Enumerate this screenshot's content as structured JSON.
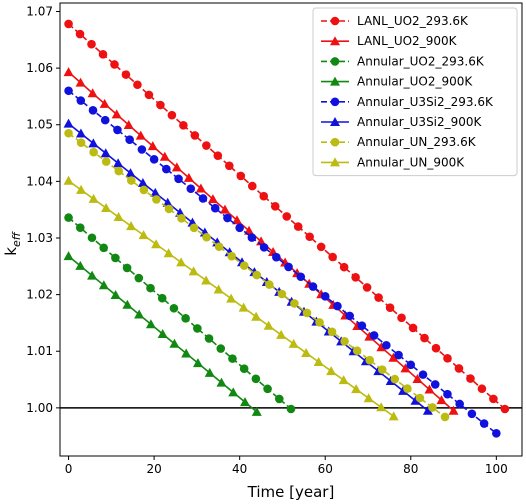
{
  "chart_data": {
    "type": "line",
    "xlabel": "Time [year]",
    "ylabel_base": "k",
    "ylabel_sub": "eff",
    "xlim": [
      -2,
      106
    ],
    "ylim": [
      0.9915,
      1.0715
    ],
    "xticks": [
      0,
      20,
      40,
      60,
      80,
      100
    ],
    "yticks": [
      1.0,
      1.01,
      1.02,
      1.03,
      1.04,
      1.05,
      1.06,
      1.07
    ],
    "ytick_labels": [
      "1.00",
      "1.01",
      "1.02",
      "1.03",
      "1.04",
      "1.05",
      "1.06",
      "1.07"
    ],
    "reference_line": 1.0,
    "grid": false,
    "legend_position": "top-right",
    "series": [
      {
        "name": "LANL_UO2_293.6K",
        "color": "#ee1111",
        "marker": "circle",
        "dashed": true,
        "x0": 0,
        "y0": 1.0678,
        "x1": 102,
        "y1": 0.9998,
        "points": 39
      },
      {
        "name": "LANL_UO2_900K",
        "color": "#ee1111",
        "marker": "triangle",
        "dashed": false,
        "x0": 0,
        "y0": 1.0593,
        "x1": 90,
        "y1": 0.9995,
        "points": 33
      },
      {
        "name": "Annular_UO2_293.6K",
        "color": "#118811",
        "marker": "circle",
        "dashed": true,
        "x0": 0,
        "y0": 1.0336,
        "x1": 52,
        "y1": 0.9998,
        "points": 20
      },
      {
        "name": "Annular_UO2_900K",
        "color": "#118811",
        "marker": "triangle",
        "dashed": false,
        "x0": 0,
        "y0": 1.0268,
        "x1": 44,
        "y1": 0.9993,
        "points": 17
      },
      {
        "name": "Annular_U3Si2_293.6K",
        "color": "#1111dd",
        "marker": "circle",
        "dashed": true,
        "x0": 0,
        "y0": 1.056,
        "x1": 100,
        "y1": 0.9955,
        "points": 36
      },
      {
        "name": "Annular_U3Si2_900K",
        "color": "#1111dd",
        "marker": "triangle",
        "dashed": false,
        "x0": 0,
        "y0": 1.0502,
        "x1": 84,
        "y1": 0.9995,
        "points": 30
      },
      {
        "name": "Annular_UN_293.6K",
        "color": "#bbbb11",
        "marker": "circle",
        "dashed": true,
        "x0": 0,
        "y0": 1.0485,
        "x1": 88,
        "y1": 0.9984,
        "points": 31
      },
      {
        "name": "Annular_UN_900K",
        "color": "#bbbb11",
        "marker": "triangle",
        "dashed": false,
        "x0": 0,
        "y0": 1.0401,
        "x1": 76,
        "y1": 0.9985,
        "points": 27
      }
    ]
  }
}
